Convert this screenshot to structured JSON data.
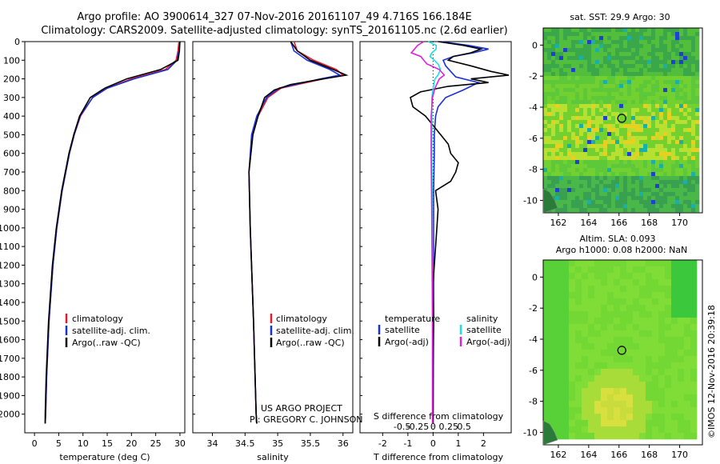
{
  "header": {
    "title_line1": "Argo profile: AO 3900614_327 07-Nov-2016 20161107_49 4.716S 166.184E",
    "title_line2": "Climatology: CARS2009. Satellite-adjusted climatology: synTS_20161105.nc (2.6d earlier)"
  },
  "notes": {
    "project": "US ARGO PROJECT",
    "pi": "PI: GREGORY C. JOHNSON",
    "credit": "©IMOS 12-Nov-2016 20:39:18"
  },
  "colors": {
    "climatology": "#e8192c",
    "satellite": "#1a2fd6",
    "argo": "#000000",
    "sal_satellite": "#18e0e8",
    "sal_argo": "#e020d8",
    "sst_base": "#4cc43c",
    "sla_base": "#7fe63a"
  },
  "chart_data": [
    {
      "id": "temp",
      "type": "line",
      "xlabel": "temperature (deg C)",
      "ylabel": "",
      "xlim": [
        -2,
        31
      ],
      "ylim": [
        2100,
        0
      ],
      "xticks": [
        0,
        5,
        10,
        15,
        20,
        25,
        30
      ],
      "xtick_labels": [
        "0",
        "5",
        "10",
        "15",
        "20",
        "25",
        "30"
      ],
      "yticks": [
        0,
        100,
        200,
        300,
        400,
        500,
        600,
        700,
        800,
        900,
        1000,
        1100,
        1200,
        1300,
        1400,
        1500,
        1600,
        1700,
        1800,
        1900,
        2000
      ],
      "ytick_labels": [
        "0",
        "100",
        "200",
        "300",
        "400",
        "500",
        "600",
        "700",
        "800",
        "900",
        "1000",
        "1100",
        "1200",
        "1300",
        "1400",
        "1500",
        "1600",
        "1700",
        "1800",
        "1900",
        "2000"
      ],
      "legend": [
        "climatology",
        "satellite-adj. clim.",
        "Argo(..raw -QC)"
      ],
      "legend_position": "lower-right",
      "series": [
        {
          "name": "climatology",
          "color_key": "climatology",
          "depth": [
            0,
            50,
            100,
            150,
            200,
            250,
            300,
            400,
            500,
            600,
            800,
            1000,
            1200,
            1500,
            1800,
            2000,
            2050
          ],
          "values": [
            29.8,
            29.6,
            29.2,
            27,
            20,
            15,
            12,
            9.5,
            8.2,
            7.2,
            5.7,
            4.6,
            3.8,
            3.0,
            2.5,
            2.3,
            2.2
          ]
        },
        {
          "name": "satellite-adj. clim.",
          "color_key": "satellite",
          "depth": [
            0,
            50,
            100,
            150,
            200,
            250,
            300,
            400,
            500,
            600,
            800,
            1000,
            1200,
            1500,
            1800,
            2000,
            2050
          ],
          "values": [
            30.0,
            29.8,
            29.4,
            27.5,
            20.5,
            15,
            12,
            9.4,
            8.2,
            7.2,
            5.7,
            4.6,
            3.8,
            3.0,
            2.5,
            2.3,
            2.2
          ]
        },
        {
          "name": "Argo(..raw -QC)",
          "color_key": "argo",
          "depth": [
            0,
            50,
            100,
            150,
            200,
            250,
            300,
            400,
            500,
            600,
            800,
            1000,
            1200,
            1500,
            1800,
            2000,
            2050
          ],
          "values": [
            30.0,
            29.9,
            29.6,
            26,
            19,
            14.5,
            11.5,
            9.3,
            8.1,
            7.1,
            5.6,
            4.5,
            3.7,
            2.9,
            2.4,
            2.2,
            2.2
          ]
        }
      ]
    },
    {
      "id": "sal",
      "type": "line",
      "xlabel": "salinity",
      "ylabel": "",
      "xlim": [
        33.7,
        36.15
      ],
      "ylim": [
        2100,
        0
      ],
      "xticks": [
        34,
        34.5,
        35,
        35.5,
        36
      ],
      "xtick_labels": [
        "34",
        "34.5",
        "35",
        "35.5",
        "36"
      ],
      "legend": [
        "climatology",
        "satellite-adj. clim.",
        "Argo(..raw -QC)"
      ],
      "legend_position": "lower-right",
      "series": [
        {
          "name": "climatology",
          "color_key": "climatology",
          "depth": [
            0,
            50,
            100,
            150,
            180,
            200,
            250,
            300,
            400,
            500,
            700,
            1000,
            1500,
            2000,
            2050
          ],
          "values": [
            35.25,
            35.3,
            35.55,
            35.9,
            36.0,
            35.7,
            35.05,
            34.85,
            34.7,
            34.62,
            34.56,
            34.58,
            34.63,
            34.67,
            34.68
          ]
        },
        {
          "name": "satellite-adj. clim.",
          "color_key": "satellite",
          "depth": [
            0,
            50,
            100,
            150,
            180,
            200,
            250,
            300,
            400,
            500,
            700,
            1000,
            1500,
            2000,
            2050
          ],
          "values": [
            35.2,
            35.25,
            35.45,
            35.8,
            35.95,
            35.65,
            35.02,
            34.83,
            34.68,
            34.6,
            34.56,
            34.58,
            34.63,
            34.67,
            34.68
          ]
        },
        {
          "name": "Argo(..raw -QC)",
          "color_key": "argo",
          "depth": [
            0,
            50,
            100,
            150,
            180,
            200,
            230,
            260,
            300,
            400,
            500,
            700,
            1000,
            1500,
            2000,
            2050
          ],
          "values": [
            35.2,
            35.3,
            35.5,
            35.85,
            36.05,
            35.7,
            35.2,
            34.95,
            34.8,
            34.7,
            34.62,
            34.56,
            34.58,
            34.63,
            34.67,
            34.68
          ]
        }
      ]
    },
    {
      "id": "diff",
      "type": "line",
      "xlabel": "T difference from climatology",
      "xlabel_top": "S difference from climatology",
      "ylim": [
        2100,
        0
      ],
      "xticks_T": [
        -2,
        -1,
        0,
        1,
        2
      ],
      "xtick_labels_T": [
        "-2",
        "-1",
        "0",
        "1",
        "2"
      ],
      "xticks_S": [
        -0.5,
        -0.25,
        0,
        0.25,
        0.5
      ],
      "xtick_labels_S": [
        "-0.5",
        "-0.25",
        "0",
        "0.25",
        "0.5"
      ],
      "xlim_T": [
        -2.9,
        3.1
      ],
      "legend_temperature_header": "temperature",
      "legend_salinity_header": "salinity",
      "legend": [
        "satellite",
        "Argo(-adj)",
        "satellite",
        "Argo(-adj)"
      ],
      "series": [
        {
          "name": "satellite",
          "group": "temperature",
          "color_key": "satellite",
          "depth": [
            0,
            20,
            40,
            60,
            80,
            100,
            130,
            160,
            190,
            220,
            260,
            300,
            350,
            400,
            500,
            600,
            800,
            1000,
            1500,
            2000,
            2050
          ],
          "values": [
            0.3,
            1.4,
            2.2,
            1.6,
            0.8,
            0.4,
            0.5,
            0.7,
            0.9,
            1.8,
            1.2,
            0.5,
            0.2,
            0.1,
            0.05,
            0.05,
            0.02,
            0.02,
            0.02,
            0,
            0
          ]
        },
        {
          "name": "Argo(-adj)",
          "group": "temperature",
          "color_key": "argo",
          "depth": [
            0,
            20,
            40,
            60,
            80,
            100,
            130,
            160,
            180,
            200,
            220,
            240,
            270,
            300,
            350,
            400,
            500,
            550,
            600,
            650,
            700,
            750,
            800,
            900,
            1000,
            1100,
            1200,
            1300,
            1500,
            1700,
            2000,
            2050
          ],
          "values": [
            0.2,
            1.2,
            1.9,
            1.5,
            0.8,
            0.6,
            1.5,
            2.3,
            3.0,
            1.5,
            2.2,
            0.6,
            -0.5,
            -0.9,
            -0.8,
            -0.3,
            0.3,
            0.6,
            0.7,
            1.0,
            0.9,
            0.7,
            0.1,
            0.2,
            0.15,
            0.1,
            0.05,
            0.0,
            0.02,
            0.0,
            0.0,
            0.0
          ]
        },
        {
          "name": "satellite",
          "group": "salinity",
          "color_key": "sal_satellite",
          "depth": [
            0,
            20,
            40,
            60,
            80,
            100,
            120,
            150,
            180,
            200,
            250,
            300,
            400,
            600,
            1000,
            1500,
            2000,
            2050
          ],
          "values": [
            -0.08,
            0.05,
            0.05,
            -0.02,
            -0.05,
            0.02,
            0.08,
            0.12,
            0.08,
            0.03,
            0.0,
            -0.02,
            -0.02,
            -0.02,
            -0.01,
            -0.01,
            -0.01,
            -0.01
          ]
        },
        {
          "name": "Argo(-adj)",
          "group": "salinity",
          "color_key": "sal_argo",
          "depth": [
            0,
            20,
            40,
            60,
            80,
            100,
            120,
            150,
            180,
            200,
            250,
            300,
            400,
            600,
            1000,
            1500,
            2000,
            2050
          ],
          "values": [
            -0.15,
            -0.25,
            -0.3,
            -0.35,
            -0.2,
            -0.15,
            -0.1,
            0.1,
            0.18,
            0.1,
            0.03,
            -0.01,
            -0.03,
            -0.03,
            -0.02,
            -0.01,
            -0.01,
            -0.01
          ]
        }
      ]
    },
    {
      "id": "sst_map",
      "type": "heatmap",
      "title": "sat. SST: 29.9 Argo: 30",
      "xlim": [
        161,
        171.5
      ],
      "ylim": [
        -10.8,
        1.1
      ],
      "xticks": [
        162,
        164,
        166,
        168,
        170
      ],
      "xtick_labels": [
        "162",
        "164",
        "166",
        "168",
        "170"
      ],
      "yticks": [
        0,
        -2,
        -4,
        -6,
        -8,
        -10
      ],
      "ytick_labels": [
        "0",
        "-2",
        "-4",
        "-6",
        "-8",
        "-10"
      ],
      "marker": {
        "lon": 166.184,
        "lat": -4.716
      }
    },
    {
      "id": "sla_map",
      "type": "heatmap",
      "title": "Altim. SLA: 0.093",
      "subtitle": "Argo h1000: 0.08 h2000: NaN",
      "xlim": [
        161,
        171.5
      ],
      "ylim": [
        -10.8,
        1.1
      ],
      "xticks": [
        162,
        164,
        166,
        168,
        170
      ],
      "xtick_labels": [
        "162",
        "164",
        "166",
        "168",
        "170"
      ],
      "yticks": [
        0,
        -2,
        -4,
        -6,
        -8,
        -10
      ],
      "ytick_labels": [
        "0",
        "-2",
        "-4",
        "-6",
        "-8",
        "-10"
      ],
      "marker": {
        "lon": 166.184,
        "lat": -4.716
      }
    }
  ]
}
